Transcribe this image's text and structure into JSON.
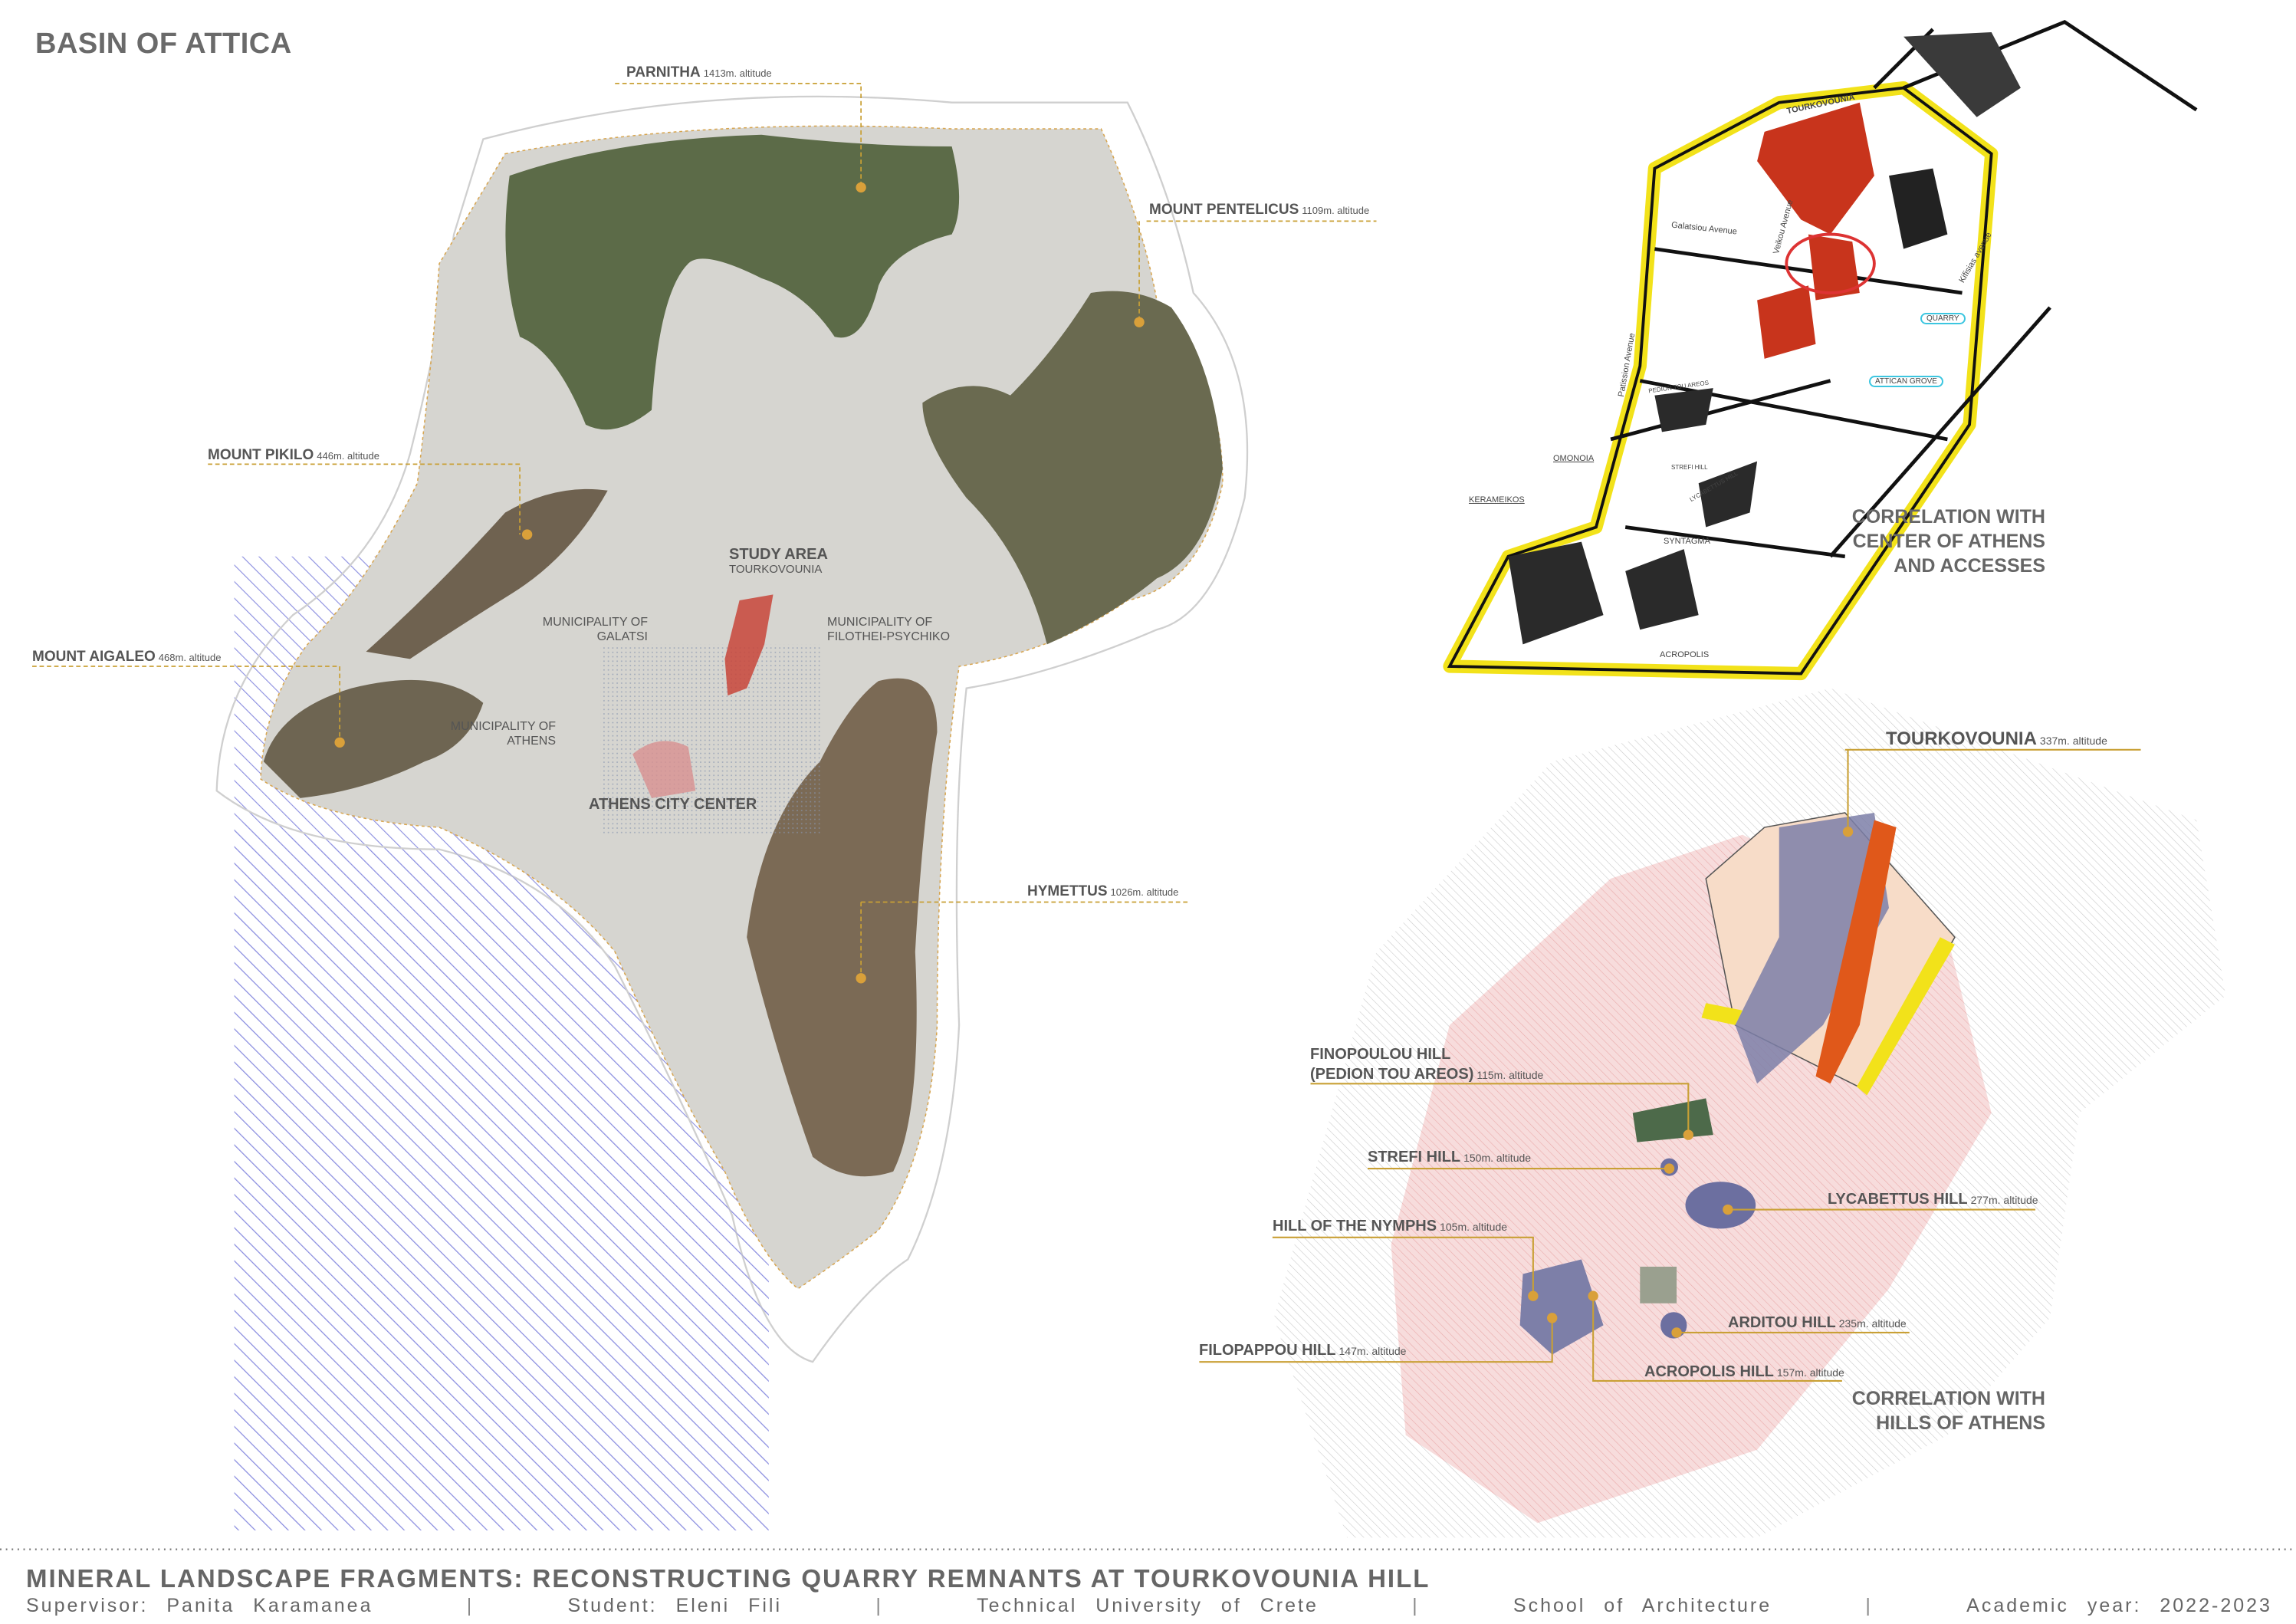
{
  "title": "BASIN OF ATTICA",
  "left_map": {
    "peaks": [
      {
        "name": "PARNITHA",
        "altitude": "1413m. altitude"
      },
      {
        "name": "MOUNT PENTELICUS",
        "altitude": "1109m. altitude"
      },
      {
        "name": "MOUNT PIKILO",
        "altitude": "446m. altitude"
      },
      {
        "name": "MOUNT AIGALEO",
        "altitude": "468m. altitude"
      },
      {
        "name": "HYMETTUS",
        "altitude": "1026m. altitude"
      }
    ],
    "areas": {
      "study_area": "STUDY AREA",
      "study_area_sub": "TOURKOVOUNIA",
      "galatsi_1": "MUNICIPALITY OF",
      "galatsi_2": "GALATSI",
      "filothei_1": "MUNICIPALITY OF",
      "filothei_2": "FILOTHEI-PSYCHIKO",
      "athens_1": "MUNICIPALITY OF",
      "athens_2": "ATHENS",
      "city_center": "ATHENS CITY CENTER"
    },
    "colors": {
      "peak_marker": "#d9a03a",
      "sea_hatch": "#8c8fe0",
      "study_area": "#c8453a"
    }
  },
  "access_map": {
    "labels": {
      "tourkovounia": "TOURKOVOUNIA",
      "galatsiou": "Galatsiou Avenue",
      "veikou": "Veikou Avenue",
      "patission": "Patission Avenue",
      "kifisias": "Kifisias avenue",
      "quarry": "QUARRY",
      "attican_grove": "ATTICAN GROVE",
      "pedion": "PEDION TOU AREOS",
      "strefi": "STREFI HILL",
      "lycabettus": "LYCABETTUS HILL",
      "omonoia": "OMONOIA",
      "kerameikos": "KERAMEIKOS",
      "syntagma": "SYNTAGMA",
      "acropolis": "ACROPOLIS"
    },
    "caption": [
      "CORRELATION WITH",
      "CENTER OF ATHENS",
      "AND ACCESSES"
    ],
    "colors": {
      "roads": "#f2e21a",
      "hills": "#c8341c"
    }
  },
  "hills_map": {
    "hills": [
      {
        "name": "TOURKOVOUNIA",
        "altitude": "337m. altitude"
      },
      {
        "name": "FINOPOULOU HILL",
        "name2": "(PEDION TOU AREOS)",
        "altitude": "115m. altitude"
      },
      {
        "name": "STREFI HILL",
        "altitude": "150m. altitude"
      },
      {
        "name": "LYCABETTUS HILL",
        "altitude": "277m. altitude"
      },
      {
        "name": "HILL OF THE NYMPHS",
        "altitude": "105m. altitude"
      },
      {
        "name": "ARDITOU HILL",
        "altitude": "235m. altitude"
      },
      {
        "name": "FILOPAPPOU HILL",
        "altitude": "147m. altitude"
      },
      {
        "name": "ACROPOLIS HILL",
        "altitude": "157m. altitude"
      }
    ],
    "caption": [
      "CORRELATION WITH",
      "HILLS OF ATHENS"
    ],
    "colors": {
      "leader": "#c9a035",
      "urban": "#f4c8c8"
    }
  },
  "footer": {
    "title": "MINERAL LANDSCAPE FRAGMENTS: RECONSTRUCTING QUARRY REMNANTS AT TOURKOVOUNIA HILL",
    "credits": [
      "Supervisor: Panita Karamanea",
      "Student: Eleni Fili",
      "Technical University of Crete",
      "School of Architecture",
      "Academic year: 2022-2023"
    ],
    "separator": "|"
  }
}
